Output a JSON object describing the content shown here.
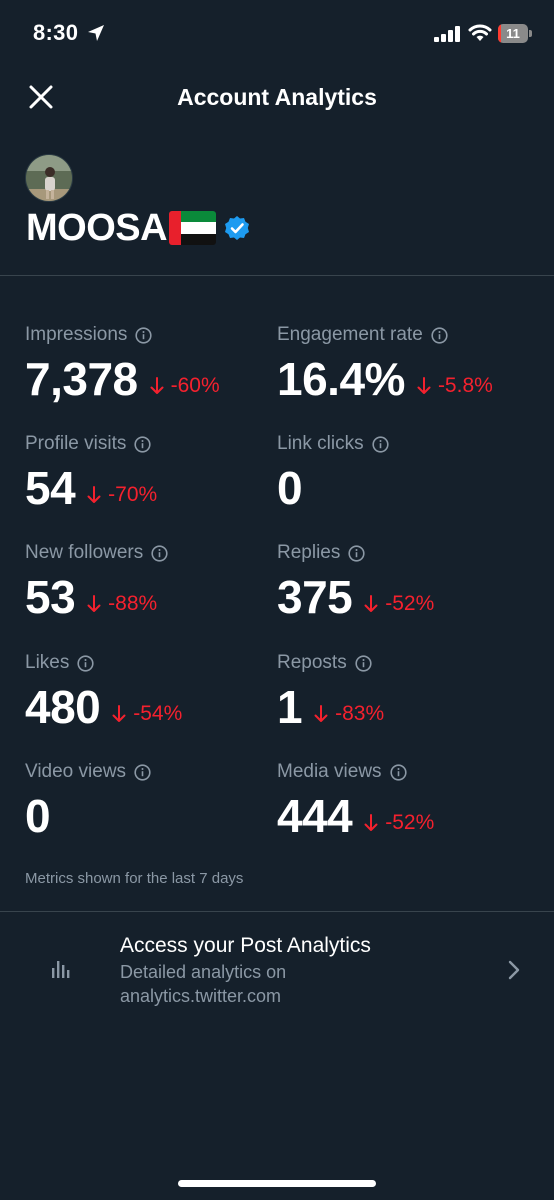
{
  "status_bar": {
    "time": "8:30",
    "battery_level": "11",
    "battery_fraction": 0.11,
    "icons": [
      "location-arrow-icon",
      "signal-icon",
      "wifi-icon",
      "battery-icon"
    ]
  },
  "header": {
    "title": "Account Analytics",
    "close_icon": "close-icon"
  },
  "profile": {
    "name": "MOOSA",
    "flag": "uae-flag",
    "verified_icon": "verified-badge-icon"
  },
  "metrics": [
    {
      "label": "Impressions",
      "value": "7,378",
      "change": "-60%"
    },
    {
      "label": "Engagement rate",
      "value": "16.4%",
      "change": "-5.8%"
    },
    {
      "label": "Profile visits",
      "value": "54",
      "change": "-70%"
    },
    {
      "label": "Link clicks",
      "value": "0",
      "change": ""
    },
    {
      "label": "New followers",
      "value": "53",
      "change": "-88%"
    },
    {
      "label": "Replies",
      "value": "375",
      "change": "-52%"
    },
    {
      "label": "Likes",
      "value": "480",
      "change": "-54%"
    },
    {
      "label": "Reposts",
      "value": "1",
      "change": "-83%"
    },
    {
      "label": "Video views",
      "value": "0",
      "change": ""
    },
    {
      "label": "Media views",
      "value": "444",
      "change": "-52%"
    }
  ],
  "footnote": "Metrics shown for the last 7 days",
  "post_analytics": {
    "title": "Access your Post Analytics",
    "subtitle_line1": "Detailed analytics on",
    "subtitle_line2": "analytics.twitter.com",
    "icon": "bar-chart-icon",
    "chevron_icon": "chevron-right-icon"
  },
  "colors": {
    "background": "#15202b",
    "text_primary": "#ffffff",
    "text_secondary": "#8b98a5",
    "negative_change": "#f4212e",
    "divider": "#38444d",
    "verified": "#1d9bf0"
  }
}
